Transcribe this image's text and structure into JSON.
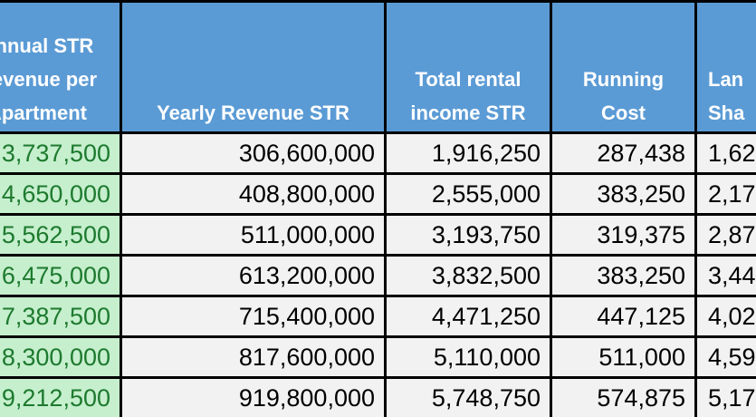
{
  "headers": [
    [
      "Annual STR",
      "Revenue per",
      "Apartment"
    ],
    [
      "Yearly Revenue STR"
    ],
    [
      "Total rental",
      "income STR"
    ],
    [
      "Running",
      "Cost"
    ],
    [
      "Lan",
      "Sha"
    ]
  ],
  "rows": [
    [
      "3,737,500",
      "306,600,000",
      "1,916,250",
      "287,438",
      "1,62"
    ],
    [
      "4,650,000",
      "408,800,000",
      "2,555,000",
      "383,250",
      "2,17"
    ],
    [
      "5,562,500",
      "511,000,000",
      "3,193,750",
      "319,375",
      "2,87"
    ],
    [
      "6,475,000",
      "613,200,000",
      "3,832,500",
      "383,250",
      "3,44"
    ],
    [
      "7,387,500",
      "715,400,000",
      "4,471,250",
      "447,125",
      "4,02"
    ],
    [
      "8,300,000",
      "817,600,000",
      "5,110,000",
      "511,000",
      "4,59"
    ],
    [
      "9,212,500",
      "919,800,000",
      "5,748,750",
      "574,875",
      "5,17"
    ]
  ],
  "colors": {
    "header_bg": "#5b9bd5",
    "highlight_bg": "#c6efce",
    "highlight_text": "#1d7a2e",
    "cell_bg": "#f2f2f2"
  }
}
